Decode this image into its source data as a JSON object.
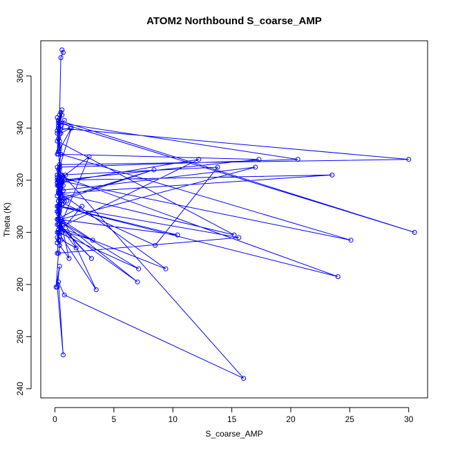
{
  "chart_data": {
    "type": "line",
    "title": "ATOM2 Northbound S_coarse_AMP",
    "xlabel": "S_coarse_AMP",
    "ylabel": "Theta (K)",
    "xlim": [
      -1.2,
      31.6
    ],
    "ylim": [
      236.5,
      373.5
    ],
    "x_ticks": [
      0,
      5,
      10,
      15,
      20,
      25,
      30
    ],
    "y_ticks": [
      240,
      260,
      280,
      300,
      320,
      340,
      360
    ],
    "grid": false,
    "legend": "none",
    "line_color": "#0000ff",
    "marker": "open-circle",
    "series": [
      {
        "x": [
          0.6,
          0.7,
          0.5,
          0.4,
          0.3,
          0.2,
          0.4,
          0.3,
          0.5,
          0.2,
          0.3,
          30.5,
          0.4,
          0.3,
          0.6,
          0.2,
          1.3,
          0.5,
          0.3,
          0.2,
          0.4,
          0.3,
          0.5,
          0.6,
          0.3,
          30.0,
          0.4,
          0.5,
          0.2,
          24.0,
          0.3,
          0.7,
          0.4,
          0.2,
          25.1,
          0.5,
          0.3,
          0.8,
          0.4,
          0.3,
          20.6,
          0.4,
          0.2,
          0.6,
          0.3,
          0.5,
          17.3,
          0.3,
          0.4,
          0.2,
          15.2,
          0.4,
          0.6,
          0.3,
          0.5,
          13.8,
          8.5,
          0.3,
          0.4,
          0.2,
          0.3,
          23.5,
          0.5,
          0.2,
          0.4,
          10.4,
          0.3,
          0.6,
          0.2,
          0.5,
          8.4,
          0.3,
          0.4,
          0.2,
          7.0,
          0.3,
          0.2,
          0.5,
          9.4,
          0.4,
          0.3,
          0.2,
          7.1,
          0.3,
          0.5,
          0.4,
          3.5,
          0.3,
          0.2,
          0.4,
          3.1,
          0.5,
          0.3,
          0.2,
          0.6,
          2.9,
          0.3,
          0.4,
          0.2,
          12.2,
          0.5,
          0.3,
          0.2,
          15.6,
          0.4,
          0.3,
          0.6,
          0.2,
          0.4,
          0.8,
          0.3,
          0.2,
          0.5,
          0.4,
          0.3,
          17.0,
          0.5,
          0.2,
          1.2,
          0.4,
          0.6,
          0.3,
          1.8,
          0.2,
          0.4,
          0.5,
          3.2,
          0.3,
          0.6,
          0.4,
          2.3,
          0.2,
          0.3,
          1.0,
          0.5,
          0.4,
          0.2,
          0.8,
          0.3,
          0.6,
          0.4,
          0.2,
          0.9,
          0.3,
          0.5,
          0.2,
          0.4,
          1.4,
          0.3,
          0.5,
          0.2,
          0.7,
          0.4,
          0.3,
          16.0,
          0.8,
          0.3,
          0.7,
          0.2,
          0.4,
          0.1,
          0.3,
          0.5,
          0.2
        ],
        "y": [
          370,
          369,
          367,
          345,
          340,
          338,
          332,
          336,
          341,
          330,
          343,
          300,
          342,
          340,
          345,
          339,
          340,
          338,
          343,
          344,
          342,
          341,
          346,
          347,
          340,
          328,
          326,
          330,
          322,
          283,
          310,
          318,
          324,
          320,
          297,
          330,
          340,
          343,
          335,
          342,
          328,
          325,
          321,
          322,
          318,
          320,
          328,
          330,
          333,
          335,
          299,
          315,
          320,
          318,
          322,
          325,
          295,
          312,
          315,
          318,
          320,
          322,
          315,
          305,
          310,
          299,
          305,
          311,
          308,
          313,
          324,
          312,
          308,
          303,
          281,
          305,
          310,
          315,
          286,
          302,
          308,
          305,
          286,
          300,
          304,
          308,
          278,
          300,
          296,
          303,
          290,
          302,
          300,
          296,
          304,
          329,
          320,
          316,
          319,
          328,
          302,
          297,
          292,
          298,
          310,
          315,
          312,
          308,
          313,
          320,
          315,
          319,
          322,
          318,
          316,
          325,
          305,
          310,
          290,
          295,
          300,
          303,
          294,
          298,
          302,
          305,
          297,
          301,
          303,
          300,
          310,
          305,
          307,
          312,
          315,
          311,
          308,
          313,
          316,
          319,
          317,
          314,
          322,
          318,
          320,
          322,
          325,
          340,
          331,
          320,
          325,
          316,
          320,
          324,
          244,
          276,
          281,
          253,
          279,
          287,
          279,
          292,
          297,
          300
        ]
      }
    ]
  }
}
